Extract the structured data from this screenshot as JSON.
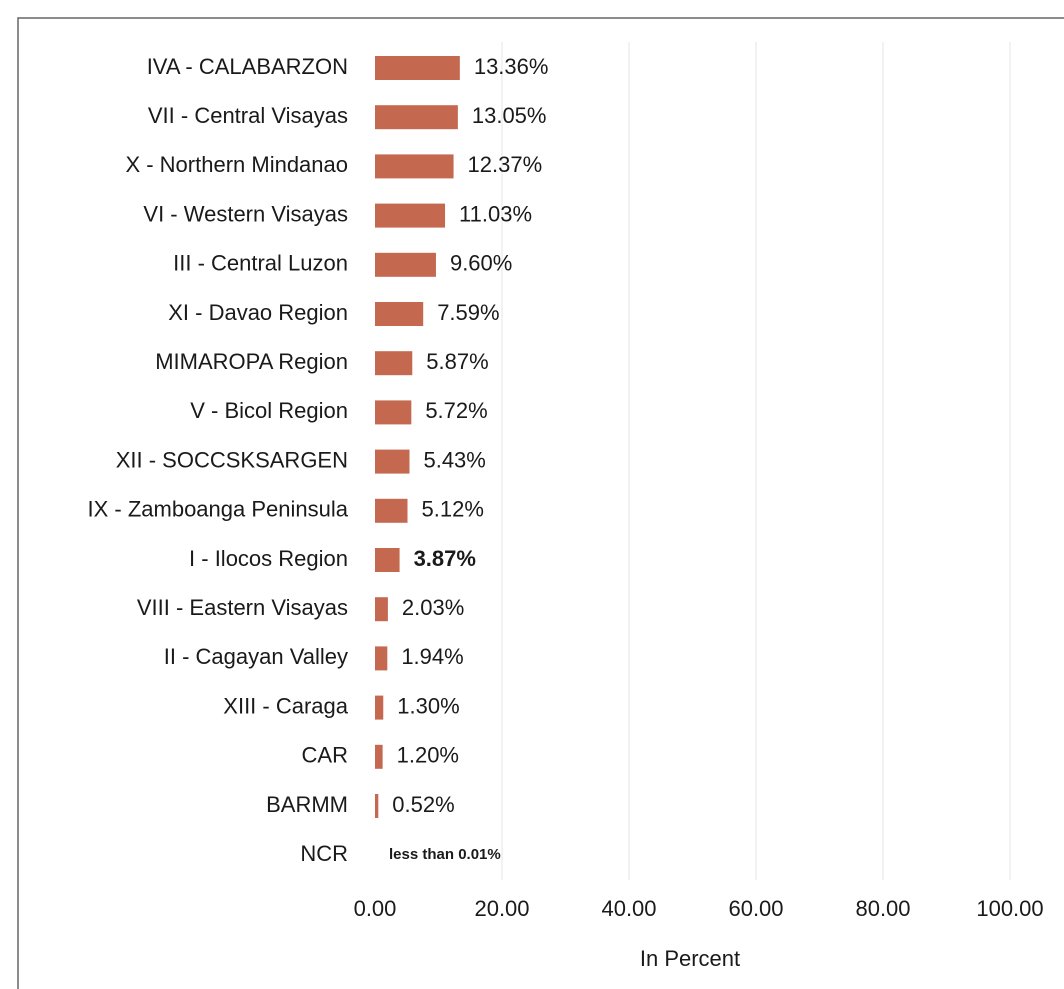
{
  "chart_data": {
    "type": "bar",
    "orientation": "horizontal",
    "categories": [
      "IVA - CALABARZON",
      "VII - Central Visayas",
      "X - Northern Mindanao",
      "VI - Western Visayas",
      "III - Central Luzon",
      "XI - Davao Region",
      "MIMAROPA Region",
      "V - Bicol Region",
      "XII - SOCCSKSARGEN",
      "IX - Zamboanga Peninsula",
      "I - Ilocos Region",
      "VIII - Eastern Visayas",
      "II - Cagayan Valley",
      "XIII - Caraga",
      "CAR",
      "BARMM",
      "NCR"
    ],
    "values": [
      13.36,
      13.05,
      12.37,
      11.03,
      9.6,
      7.59,
      5.87,
      5.72,
      5.43,
      5.12,
      3.87,
      2.03,
      1.94,
      1.3,
      1.2,
      0.52,
      0
    ],
    "value_labels": [
      "13.36%",
      "13.05%",
      "12.37%",
      "11.03%",
      "9.60%",
      "7.59%",
      "5.87%",
      "5.72%",
      "5.43%",
      "5.12%",
      "3.87%",
      "2.03%",
      "1.94%",
      "1.30%",
      "1.20%",
      "0.52%",
      "less than 0.01%"
    ],
    "color": "#c4694f",
    "xlim": [
      0,
      100
    ],
    "xticks": [
      {
        "value": 0,
        "label": "0.00"
      },
      {
        "value": 20,
        "label": "20.00"
      },
      {
        "value": 40,
        "label": "40.00"
      },
      {
        "value": 60,
        "label": "60.00"
      },
      {
        "value": 80,
        "label": "80.00"
      },
      {
        "value": 100,
        "label": "100.00"
      }
    ],
    "x_label": "In Percent",
    "grid": true
  }
}
